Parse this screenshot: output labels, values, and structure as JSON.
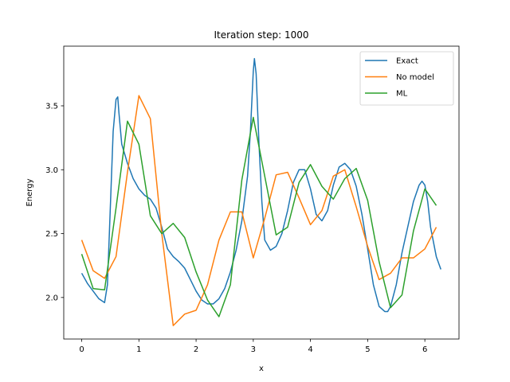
{
  "chart_data": {
    "type": "line",
    "title": "Iteration step: 1000",
    "xlabel": "x",
    "ylabel": "Energy",
    "xlim": [
      -0.314,
      6.597
    ],
    "ylim": [
      1.675,
      3.967
    ],
    "xticks": [
      0,
      1,
      2,
      3,
      4,
      5,
      6
    ],
    "xtick_labels": [
      "0",
      "1",
      "2",
      "3",
      "4",
      "5",
      "6"
    ],
    "yticks": [
      2.0,
      2.5,
      3.0,
      3.5
    ],
    "ytick_labels": [
      "2.0",
      "2.5",
      "3.0",
      "3.5"
    ],
    "grid": false,
    "legend_position": "top-right",
    "series": [
      {
        "name": "Exact",
        "color": "#1f77b4",
        "x": [
          0,
          0.1,
          0.2,
          0.3,
          0.4,
          0.45,
          0.5,
          0.55,
          0.6,
          0.63,
          0.65,
          0.7,
          0.8,
          0.9,
          1.0,
          1.1,
          1.2,
          1.3,
          1.4,
          1.5,
          1.6,
          1.7,
          1.8,
          1.9,
          2.0,
          2.1,
          2.2,
          2.3,
          2.4,
          2.5,
          2.6,
          2.7,
          2.8,
          2.9,
          2.95,
          3.0,
          3.02,
          3.05,
          3.1,
          3.15,
          3.2,
          3.3,
          3.4,
          3.5,
          3.6,
          3.7,
          3.8,
          3.9,
          4.0,
          4.1,
          4.2,
          4.3,
          4.4,
          4.5,
          4.6,
          4.7,
          4.8,
          4.9,
          5.0,
          5.1,
          5.2,
          5.3,
          5.35,
          5.4,
          5.5,
          5.6,
          5.7,
          5.8,
          5.9,
          5.95,
          6.0,
          6.05,
          6.1,
          6.2,
          6.28
        ],
        "y": [
          2.19,
          2.11,
          2.05,
          1.99,
          1.96,
          2.1,
          2.7,
          3.3,
          3.55,
          3.57,
          3.45,
          3.2,
          3.05,
          2.93,
          2.85,
          2.8,
          2.77,
          2.7,
          2.55,
          2.38,
          2.32,
          2.28,
          2.23,
          2.14,
          2.05,
          1.98,
          1.95,
          1.95,
          1.99,
          2.07,
          2.2,
          2.37,
          2.6,
          2.95,
          3.3,
          3.77,
          3.87,
          3.75,
          3.2,
          2.75,
          2.45,
          2.37,
          2.4,
          2.5,
          2.68,
          2.9,
          3.0,
          3.0,
          2.85,
          2.65,
          2.6,
          2.68,
          2.88,
          3.02,
          3.05,
          3.0,
          2.87,
          2.65,
          2.38,
          2.1,
          1.93,
          1.89,
          1.89,
          1.93,
          2.1,
          2.35,
          2.55,
          2.75,
          2.88,
          2.91,
          2.88,
          2.75,
          2.55,
          2.32,
          2.22
        ]
      },
      {
        "name": "No model",
        "color": "#ff7f0e",
        "x": [
          0,
          0.2,
          0.4,
          0.6,
          0.8,
          1.0,
          1.2,
          1.4,
          1.6,
          1.8,
          2.0,
          2.2,
          2.4,
          2.6,
          2.8,
          3.0,
          3.2,
          3.4,
          3.6,
          3.8,
          4.0,
          4.2,
          4.4,
          4.6,
          4.8,
          5.0,
          5.2,
          5.4,
          5.6,
          5.8,
          6.0,
          6.2
        ],
        "y": [
          2.45,
          2.21,
          2.15,
          2.32,
          2.98,
          3.58,
          3.4,
          2.5,
          1.78,
          1.87,
          1.9,
          2.1,
          2.45,
          2.67,
          2.67,
          2.31,
          2.62,
          2.96,
          2.98,
          2.78,
          2.57,
          2.68,
          2.95,
          3.0,
          2.71,
          2.4,
          2.14,
          2.19,
          2.31,
          2.31,
          2.38,
          2.55
        ]
      },
      {
        "name": "ML",
        "color": "#2ca02c",
        "x": [
          0,
          0.2,
          0.4,
          0.6,
          0.8,
          1.0,
          1.2,
          1.4,
          1.6,
          1.8,
          2.0,
          2.2,
          2.4,
          2.6,
          2.8,
          3.0,
          3.2,
          3.4,
          3.6,
          3.8,
          4.0,
          4.2,
          4.4,
          4.6,
          4.8,
          5.0,
          5.2,
          5.4,
          5.6,
          5.8,
          6.0,
          6.2
        ],
        "y": [
          2.34,
          2.07,
          2.06,
          2.7,
          3.38,
          3.2,
          2.64,
          2.5,
          2.58,
          2.47,
          2.2,
          1.98,
          1.85,
          2.1,
          2.92,
          3.41,
          2.95,
          2.49,
          2.55,
          2.9,
          3.04,
          2.87,
          2.77,
          2.93,
          3.01,
          2.76,
          2.28,
          1.92,
          2.02,
          2.52,
          2.85,
          2.72
        ]
      }
    ]
  }
}
